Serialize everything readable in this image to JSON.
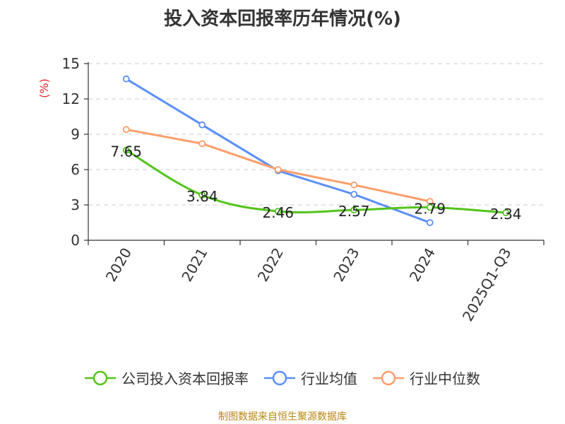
{
  "title": "投入资本回报率历年情况(%)",
  "source_note": "制图数据来自恒生聚源数据库",
  "colors": {
    "company": "#52c41a",
    "industry_avg": "#5b8ff9",
    "industry_median": "#ff9e6b",
    "unit": "#e8262c",
    "axis": "#333333",
    "grid": "#cccccc"
  },
  "chart_data": {
    "type": "line",
    "title": "投入资本回报率历年情况(%)",
    "ylabel": "(%)",
    "xlabel": "",
    "categories": [
      "2020",
      "2021",
      "2022",
      "2023",
      "2024",
      "2025Q1-Q3"
    ],
    "ylim": [
      0,
      15
    ],
    "yticks": [
      0,
      3,
      6,
      9,
      12,
      15
    ],
    "grid": true,
    "legend_position": "bottom",
    "series": [
      {
        "name": "公司投入资本回报率",
        "values": [
          7.65,
          3.84,
          2.46,
          2.57,
          2.79,
          2.34
        ],
        "labels": [
          "7.65",
          "3.84",
          "2.46",
          "2.57",
          "2.79",
          "2.34"
        ]
      },
      {
        "name": "行业均值",
        "values": [
          13.7,
          9.8,
          5.9,
          3.9,
          1.5,
          null
        ]
      },
      {
        "name": "行业中位数",
        "values": [
          9.4,
          8.2,
          6.0,
          4.7,
          3.3,
          null
        ]
      }
    ]
  }
}
